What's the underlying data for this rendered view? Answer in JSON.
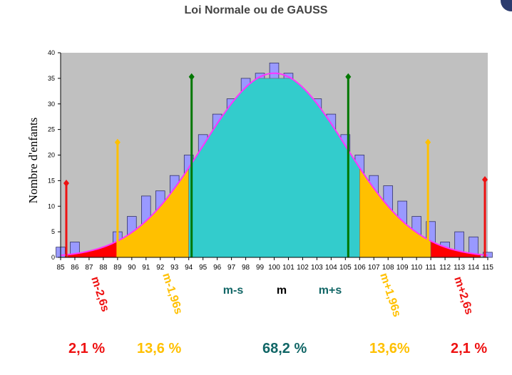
{
  "title": "Loi Normale ou de GAUSS",
  "chart_data": {
    "type": "bar",
    "title": "Loi Normale ou de GAUSS",
    "xlabel": "",
    "ylabel": "Nombre d'enfants",
    "ylim": [
      0,
      40
    ],
    "yticks": [
      0,
      5,
      10,
      15,
      20,
      25,
      30,
      35,
      40
    ],
    "grid": false,
    "x": [
      85,
      86,
      87,
      88,
      89,
      90,
      91,
      92,
      93,
      94,
      95,
      96,
      97,
      98,
      99,
      100,
      101,
      102,
      103,
      104,
      105,
      106,
      107,
      108,
      109,
      110,
      111,
      112,
      113,
      114,
      115
    ],
    "x_tick_labels": [
      "85",
      "86",
      "87",
      "88",
      "89",
      "90",
      "91",
      "92",
      "93",
      "94",
      "95",
      "96",
      "97",
      "98",
      "99",
      "100",
      "101",
      "102",
      "103",
      "104",
      "105",
      "106",
      "107",
      "108",
      "109",
      "110",
      "111",
      "112",
      "113",
      "114",
      "115"
    ],
    "values": [
      2,
      3,
      1,
      1,
      5,
      8,
      12,
      13,
      16,
      20,
      24,
      28,
      31,
      35,
      36,
      38,
      36,
      32,
      31,
      28,
      24,
      20,
      16,
      14,
      11,
      8,
      7,
      3,
      5,
      4,
      1
    ],
    "normal_curve": {
      "mean": 100,
      "sd": 5,
      "peak": 36
    },
    "markers": [
      {
        "label": "m-2,6s",
        "x": 89,
        "color": "#ee1111",
        "rotated": true
      },
      {
        "label": "m-1,96s",
        "x": 94,
        "color": "#ffc000",
        "rotated": true
      },
      {
        "label": "m-s",
        "x": 95,
        "color": "#116666",
        "rotated": false
      },
      {
        "label": "m",
        "x": 100,
        "color": "#000000",
        "rotated": false
      },
      {
        "label": "m+s",
        "x": 105,
        "color": "#116666",
        "rotated": false
      },
      {
        "label": "m+1,96s",
        "x": 106,
        "color": "#ffc000",
        "rotated": true
      },
      {
        "label": "m+2,6s",
        "x": 111,
        "color": "#ee1111",
        "rotated": true
      }
    ],
    "percentages": [
      {
        "value": "2,1 %",
        "color": "#ee1111"
      },
      {
        "value": "13,6 %",
        "color": "#ffc000"
      },
      {
        "value": "68,2 %",
        "color": "#116666"
      },
      {
        "value": "13,6%",
        "color": "#ffc000"
      },
      {
        "value": "2,1 %",
        "color": "#ee1111"
      }
    ],
    "colors": {
      "plot_bg": "#c0c0c0",
      "bar": "#9999ff",
      "curve": "#ff33ff",
      "center_zone": "#33cccc",
      "mid_zone": "#ffc000",
      "tail_zone": "#ff0000",
      "line_sd": "#007700",
      "line_196": "#ffc000",
      "line_26": "#ee1111"
    }
  }
}
